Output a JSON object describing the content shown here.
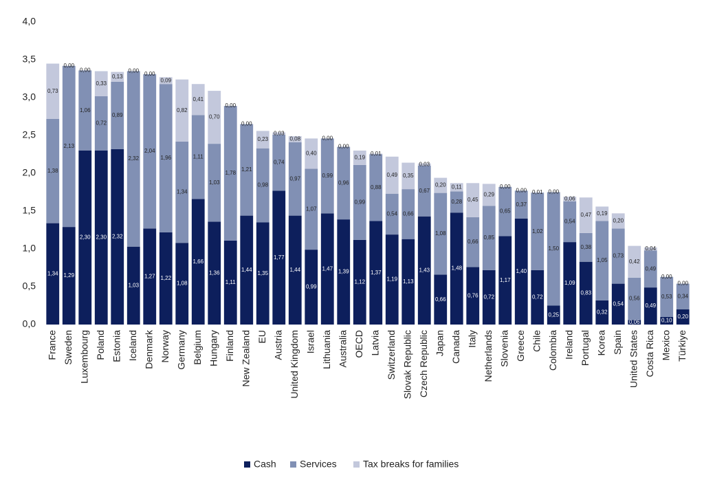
{
  "chart_data": {
    "type": "stacked_bar",
    "categories": [
      "France",
      "Sweden",
      "Luxembourg",
      "Poland",
      "Estonia",
      "Iceland",
      "Denmark",
      "Norway",
      "Germany",
      "Belgium",
      "Hungary",
      "Finland",
      "New Zealand",
      "EU",
      "Austria",
      "United Kingdom",
      "Israel",
      "Lithuania",
      "Australia",
      "OECD",
      "Latvia",
      "Switzerland",
      "Slovak Republic",
      "Czech Republic",
      "Japan",
      "Canada",
      "Italy",
      "Netherlands",
      "Slovenia",
      "Greece",
      "Chile",
      "Colombia",
      "Ireland",
      "Portugal",
      "Korea",
      "Spain",
      "United States",
      "Costa Rica",
      "Mexico",
      "Türkiye"
    ],
    "series": [
      {
        "name": "Cash",
        "color": "#0d1f5c",
        "values": [
          1.34,
          1.29,
          2.3,
          2.3,
          2.32,
          1.03,
          1.27,
          1.22,
          1.08,
          1.66,
          1.36,
          1.11,
          1.44,
          1.35,
          1.77,
          1.44,
          0.99,
          1.47,
          1.39,
          1.12,
          1.37,
          1.19,
          1.13,
          1.43,
          0.66,
          1.48,
          0.76,
          0.72,
          1.17,
          1.4,
          0.72,
          0.25,
          1.09,
          0.83,
          0.32,
          0.54,
          0.06,
          0.49,
          0.1,
          0.2
        ],
        "value_labels": [
          "1,34",
          "1,29",
          "2,30",
          "2,30",
          "2,32",
          "1,03",
          "1,27",
          "1,22",
          "1,08",
          "1,66",
          "1,36",
          "1,11",
          "1,44",
          "1,35",
          "1,77",
          "1,44",
          "0,99",
          "1,47",
          "1,39",
          "1,12",
          "1,37",
          "1,19",
          "1,13",
          "1,43",
          "0,66",
          "1,48",
          "0,76",
          "0,72",
          "1,17",
          "1,40",
          "0,72",
          "0,25",
          "1,09",
          "0,83",
          "0,32",
          "0,54",
          "0,06",
          "0,49",
          "0,10",
          "0,20"
        ]
      },
      {
        "name": "Services",
        "color": "#8190b4",
        "values": [
          1.38,
          2.13,
          1.06,
          0.72,
          0.89,
          2.32,
          2.04,
          1.96,
          1.34,
          1.11,
          1.03,
          1.78,
          1.21,
          0.98,
          0.74,
          0.97,
          1.07,
          0.99,
          0.96,
          0.99,
          0.88,
          0.54,
          0.66,
          0.67,
          1.08,
          0.28,
          0.66,
          0.85,
          0.65,
          0.37,
          1.02,
          1.5,
          0.54,
          0.38,
          1.05,
          0.73,
          0.56,
          0.49,
          0.53,
          0.34
        ],
        "value_labels": [
          "1,38",
          "2,13",
          "1,06",
          "0,72",
          "0,89",
          "2,32",
          "2,04",
          "1,96",
          "1,34",
          "1,11",
          "1,03",
          "1,78",
          "1,21",
          "0,98",
          "0,74",
          "0,97",
          "1,07",
          "0,99",
          "0,96",
          "0,99",
          "0,88",
          "0,54",
          "0,66",
          "0,67",
          "1,08",
          "0,28",
          "0,66",
          "0,85",
          "0,65",
          "0,37",
          "1,02",
          "1,50",
          "0,54",
          "0,38",
          "1,05",
          "0,73",
          "0,56",
          "0,49",
          "0,53",
          "0,34"
        ]
      },
      {
        "name": "Tax breaks for families",
        "color": "#c3c8dc",
        "values": [
          0.73,
          0.0,
          0.0,
          0.33,
          0.13,
          0.0,
          0.0,
          0.09,
          0.82,
          0.41,
          0.7,
          0.0,
          0.0,
          0.23,
          0.03,
          0.08,
          0.4,
          0.0,
          0.0,
          0.19,
          0.01,
          0.49,
          0.35,
          0.03,
          0.2,
          0.11,
          0.45,
          0.29,
          0.0,
          0.0,
          0.01,
          0.0,
          0.06,
          0.47,
          0.19,
          0.2,
          0.42,
          0.04,
          0.0,
          0.0
        ],
        "value_labels": [
          "0,73",
          "0,00",
          "0,00",
          "0,33",
          "0,13",
          "0,00",
          "0,00",
          "0,09",
          "0,82",
          "0,41",
          "0,70",
          "0,00",
          "0,00",
          "0,23",
          "0,03",
          "0,08",
          "0,40",
          "0,00",
          "0,00",
          "0,19",
          "0,01",
          "0,49",
          "0,35",
          "0,03",
          "0,20",
          "0,11",
          "0,45",
          "0,29",
          "0,00",
          "0,00",
          "0,01",
          "0,00",
          "0,06",
          "0,47",
          "0,19",
          "0,20",
          "0,42",
          "0,04",
          "0,00",
          "0,00"
        ]
      }
    ],
    "ylim": [
      0,
      4
    ],
    "yticks": [
      {
        "value": 0,
        "label": "0,0"
      },
      {
        "value": 0.5,
        "label": "0,5"
      },
      {
        "value": 1,
        "label": "1,0"
      },
      {
        "value": 1.5,
        "label": "1,5"
      },
      {
        "value": 2,
        "label": "2,0"
      },
      {
        "value": 2.5,
        "label": "2,5"
      },
      {
        "value": 3,
        "label": "3,0"
      },
      {
        "value": 3.5,
        "label": "3,5"
      },
      {
        "value": 4,
        "label": "4,0"
      }
    ],
    "legend": "bottom"
  }
}
